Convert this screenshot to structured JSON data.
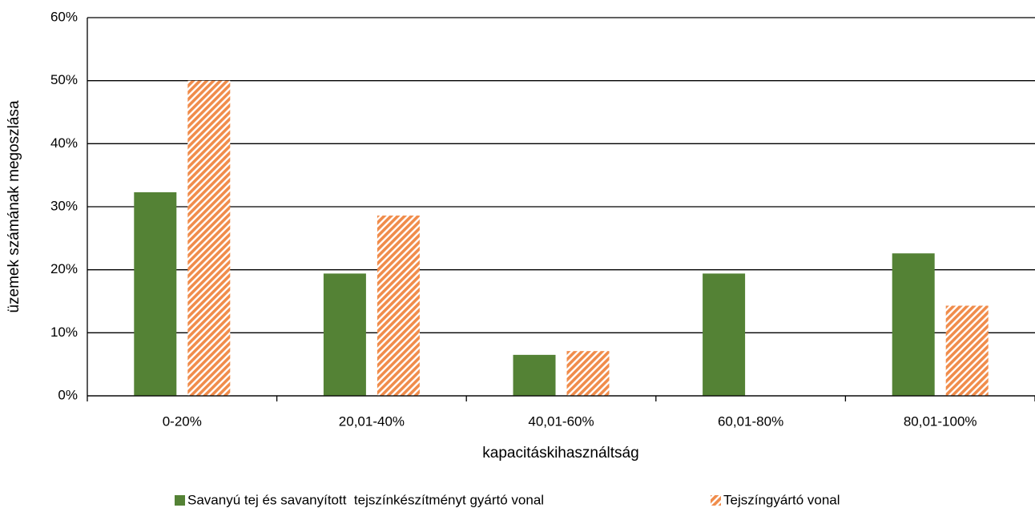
{
  "chart_data": {
    "type": "bar",
    "x_label": "kapacitáskihasználtság",
    "y_label": "üzemek számának megoszlása",
    "categories": [
      "0-20%",
      "20,01-40%",
      "40,01-60%",
      "60,01-80%",
      "80,01-100%"
    ],
    "series": [
      {
        "name": "Savanyú tej és savanyított  tejszínkészítményt gyártó vonal",
        "color": "#548235",
        "values": [
          32.3,
          19.4,
          6.5,
          19.4,
          22.6
        ]
      },
      {
        "name": "Tejszíngyártó vonal",
        "color": "#f08c4b",
        "pattern": "hatch",
        "values": [
          50,
          28.6,
          7.1,
          0,
          14.3
        ]
      }
    ],
    "ylim": [
      0,
      60
    ],
    "yticks": [
      {
        "value": 0,
        "label": "0%"
      },
      {
        "value": 10,
        "label": "10%"
      },
      {
        "value": 20,
        "label": "20%"
      },
      {
        "value": 30,
        "label": "30%"
      },
      {
        "value": 40,
        "label": "40%"
      },
      {
        "value": 50,
        "label": "50%"
      },
      {
        "value": 60,
        "label": "60%"
      }
    ],
    "grid": true,
    "legend": "bottom"
  }
}
